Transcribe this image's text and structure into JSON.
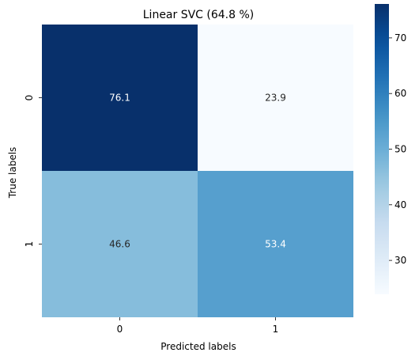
{
  "chart_data": {
    "type": "heatmap",
    "title": "Linear SVC (64.8 %)",
    "xlabel": "Predicted labels",
    "ylabel": "True labels",
    "x_categories": [
      "0",
      "1"
    ],
    "y_categories": [
      "0",
      "1"
    ],
    "values": [
      [
        76.1,
        23.9
      ],
      [
        46.6,
        53.4
      ]
    ],
    "cell_labels": [
      [
        "76.1",
        "23.9"
      ],
      [
        "46.6",
        "53.4"
      ]
    ],
    "colormap": "Blues",
    "color_range": [
      23.9,
      76.1
    ],
    "colorbar_ticks": [
      "30",
      "40",
      "50",
      "60",
      "70"
    ],
    "colors": {
      "low": "#f7fbff",
      "high": "#08306b"
    }
  }
}
